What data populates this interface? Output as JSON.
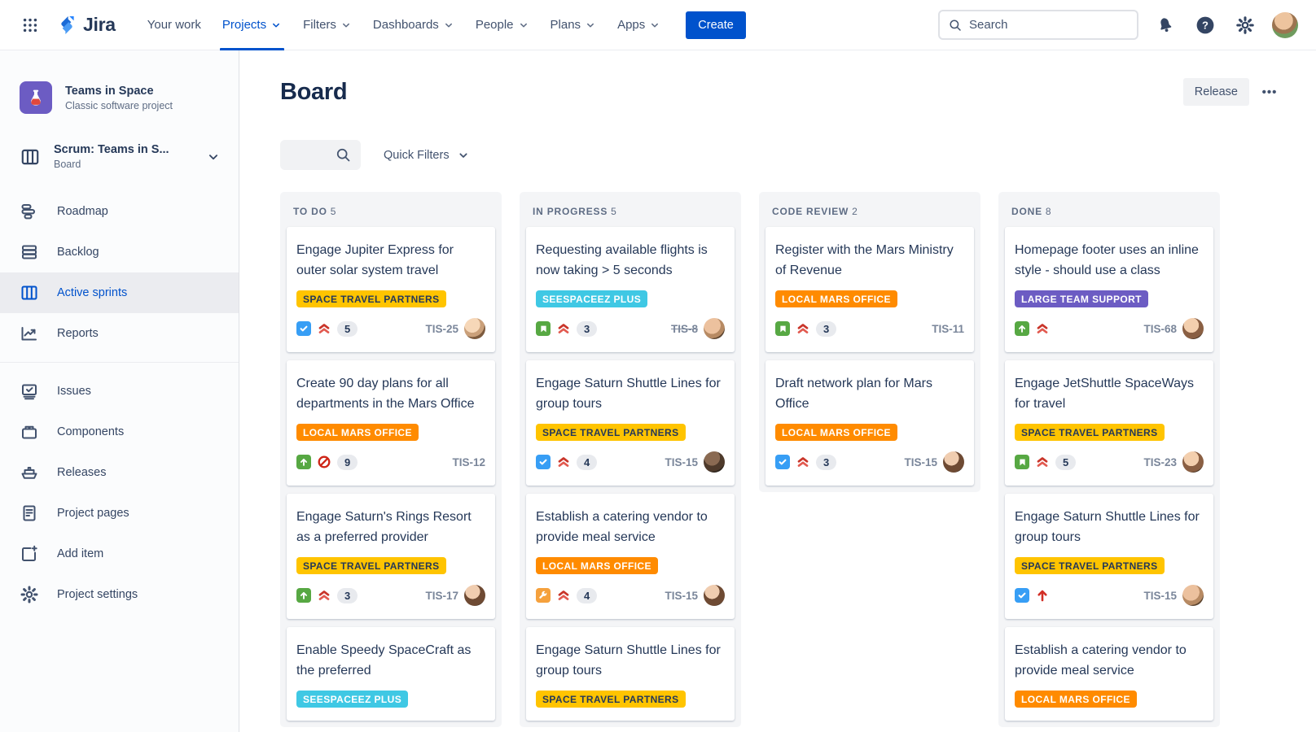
{
  "colors": {
    "brand_blue": "#0052CC",
    "text_dark": "#172B4D",
    "text_muted": "#5E6C84",
    "column_bg": "#F4F5F7",
    "label_yellow": "#FFC400",
    "label_orange": "#FF8B00",
    "label_teal": "#3FC8E4",
    "label_purple": "#6C5CC3",
    "priority_red": "#C9352A",
    "type_task_blue": "#379EF5",
    "type_green": "#57A843",
    "type_wrench_orange": "#F5A13D"
  },
  "topnav": {
    "logo_text": "Jira",
    "items": [
      {
        "label": "Your work",
        "caret": false,
        "active": false
      },
      {
        "label": "Projects",
        "caret": true,
        "active": true
      },
      {
        "label": "Filters",
        "caret": true,
        "active": false
      },
      {
        "label": "Dashboards",
        "caret": true,
        "active": false
      },
      {
        "label": "People",
        "caret": true,
        "active": false
      },
      {
        "label": "Plans",
        "caret": true,
        "active": false
      },
      {
        "label": "Apps",
        "caret": true,
        "active": false
      }
    ],
    "create_label": "Create",
    "search_placeholder": "Search",
    "right_icons": [
      "notifications-bell-icon",
      "help-icon",
      "settings-gear-icon",
      "user-avatar"
    ]
  },
  "sidebar": {
    "project": {
      "name": "Teams in Space",
      "type": "Classic software project"
    },
    "board_selector": {
      "title": "Scrum: Teams in S...",
      "subtitle": "Board"
    },
    "sections": [
      {
        "items": [
          {
            "label": "Roadmap",
            "icon": "roadmap-icon",
            "active": false
          },
          {
            "label": "Backlog",
            "icon": "backlog-icon",
            "active": false
          },
          {
            "label": "Active sprints",
            "icon": "sprints-icon",
            "active": true
          },
          {
            "label": "Reports",
            "icon": "reports-icon",
            "active": false
          }
        ]
      },
      {
        "items": [
          {
            "label": "Issues",
            "icon": "issues-icon",
            "active": false
          },
          {
            "label": "Components",
            "icon": "components-icon",
            "active": false
          },
          {
            "label": "Releases",
            "icon": "releases-icon",
            "active": false
          },
          {
            "label": "Project pages",
            "icon": "pages-icon",
            "active": false
          },
          {
            "label": "Add item",
            "icon": "add-item-icon",
            "active": false
          },
          {
            "label": "Project settings",
            "icon": "settings-icon",
            "active": false
          }
        ]
      }
    ]
  },
  "board": {
    "title": "Board",
    "release_label": "Release",
    "more_label": "•••",
    "quick_filters_label": "Quick Filters",
    "columns": [
      {
        "name": "TO DO",
        "count": "5",
        "cards": [
          {
            "title": "Engage Jupiter Express for outer solar system travel",
            "label": "SPACE TRAVEL PARTNERS",
            "label_color": "#FFC400",
            "label_text_color": "#253858",
            "type": "task",
            "priority": "highest",
            "estimate": "5",
            "key": "TIS-25",
            "key_struck": false,
            "avatar": 1
          },
          {
            "title": "Create 90 day plans for all departments in the Mars Office",
            "label": "LOCAL MARS OFFICE",
            "label_color": "#FF8B00",
            "label_text_color": "#FFFFFF",
            "type": "improvement",
            "priority": "blocker",
            "estimate": "9",
            "key": "TIS-12",
            "key_struck": false,
            "avatar": null
          },
          {
            "title": "Engage Saturn's Rings Resort as a preferred provider",
            "label": "SPACE TRAVEL PARTNERS",
            "label_color": "#FFC400",
            "label_text_color": "#253858",
            "type": "improvement",
            "priority": "highest",
            "estimate": "3",
            "key": "TIS-17",
            "key_struck": false,
            "avatar": 4
          },
          {
            "title": "Enable Speedy SpaceCraft as the preferred",
            "label": "SEESPACEEZ PLUS",
            "label_color": "#3FC8E4",
            "label_text_color": "#FFFFFF",
            "type": null,
            "priority": null,
            "estimate": null,
            "key": null,
            "key_struck": false,
            "avatar": null
          }
        ]
      },
      {
        "name": "IN PROGRESS",
        "count": "5",
        "cards": [
          {
            "title": "Requesting available flights is now taking > 5 seconds",
            "label": "SEESPACEEZ PLUS",
            "label_color": "#3FC8E4",
            "label_text_color": "#FFFFFF",
            "type": "story",
            "priority": "highest",
            "estimate": "3",
            "key": "TIS-8",
            "key_struck": true,
            "avatar": 2
          },
          {
            "title": "Engage Saturn Shuttle Lines for group tours",
            "label": "SPACE TRAVEL PARTNERS",
            "label_color": "#FFC400",
            "label_text_color": "#253858",
            "type": "task",
            "priority": "highest",
            "estimate": "4",
            "key": "TIS-15",
            "key_struck": false,
            "avatar": 3
          },
          {
            "title": "Establish a catering vendor to provide meal service",
            "label": "LOCAL MARS OFFICE",
            "label_color": "#FF8B00",
            "label_text_color": "#FFFFFF",
            "type": "maintenance",
            "priority": "highest",
            "estimate": "4",
            "key": "TIS-15",
            "key_struck": false,
            "avatar": 4
          },
          {
            "title": "Engage Saturn Shuttle Lines for group tours",
            "label": "SPACE TRAVEL PARTNERS",
            "label_color": "#FFC400",
            "label_text_color": "#253858",
            "type": null,
            "priority": null,
            "estimate": null,
            "key": null,
            "key_struck": false,
            "avatar": null
          }
        ]
      },
      {
        "name": "CODE REVIEW",
        "count": "2",
        "cards": [
          {
            "title": "Register with the Mars Ministry of Revenue",
            "label": "LOCAL MARS OFFICE",
            "label_color": "#FF8B00",
            "label_text_color": "#FFFFFF",
            "type": "story",
            "priority": "highest",
            "estimate": "3",
            "key": "TIS-11",
            "key_struck": false,
            "avatar": null
          },
          {
            "title": "Draft network plan for Mars Office",
            "label": "LOCAL MARS OFFICE",
            "label_color": "#FF8B00",
            "label_text_color": "#FFFFFF",
            "type": "task",
            "priority": "highest",
            "estimate": "3",
            "key": "TIS-15",
            "key_struck": false,
            "avatar": 4
          }
        ]
      },
      {
        "name": "DONE",
        "count": "8",
        "cards": [
          {
            "title": "Homepage footer uses an inline style - should use a class",
            "label": "LARGE TEAM SUPPORT",
            "label_color": "#6C5CC3",
            "label_text_color": "#FFFFFF",
            "type": "improvement",
            "priority": "highest",
            "estimate": null,
            "key": "TIS-68",
            "key_struck": false,
            "avatar": 5
          },
          {
            "title": "Engage JetShuttle SpaceWays for travel",
            "label": "SPACE TRAVEL PARTNERS",
            "label_color": "#FFC400",
            "label_text_color": "#253858",
            "type": "story",
            "priority": "highest",
            "estimate": "5",
            "key": "TIS-23",
            "key_struck": false,
            "avatar": 5
          },
          {
            "title": "Engage Saturn Shuttle Lines for group tours",
            "label": "SPACE TRAVEL PARTNERS",
            "label_color": "#FFC400",
            "label_text_color": "#253858",
            "type": "task",
            "priority": "high",
            "estimate": null,
            "key": "TIS-15",
            "key_struck": false,
            "avatar": 2
          },
          {
            "title": "Establish a catering vendor to provide meal service",
            "label": "LOCAL MARS OFFICE",
            "label_color": "#FF8B00",
            "label_text_color": "#FFFFFF",
            "type": null,
            "priority": null,
            "estimate": null,
            "key": null,
            "key_struck": false,
            "avatar": null
          }
        ]
      }
    ]
  }
}
